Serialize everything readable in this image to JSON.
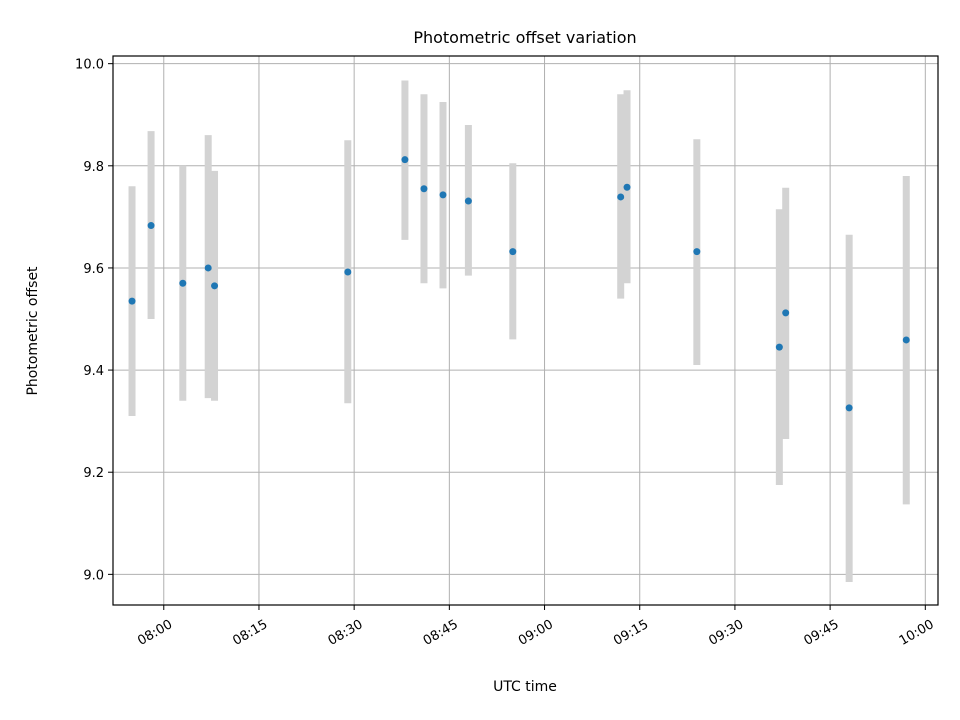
{
  "chart_data": {
    "type": "scatter",
    "title": "Photometric offset variation",
    "xlabel": "UTC time",
    "ylabel": "Photometric offset",
    "grid": true,
    "xlim": [
      "07:52",
      "10:02"
    ],
    "ylim": [
      8.94,
      10.015
    ],
    "x_ticks": [
      "08:00",
      "08:15",
      "08:30",
      "08:45",
      "09:00",
      "09:15",
      "09:30",
      "09:45",
      "10:00"
    ],
    "y_ticks": [
      "9.0",
      "9.2",
      "9.4",
      "9.6",
      "9.8",
      "10.0"
    ],
    "colors": {
      "point": "#1f77b4",
      "errorbar": "#d3d3d3",
      "grid": "#b0b0b0"
    },
    "points": [
      {
        "x": "07:55",
        "y": 9.535,
        "ylow": 9.31,
        "yhigh": 9.76
      },
      {
        "x": "07:58",
        "y": 9.683,
        "ylow": 9.5,
        "yhigh": 9.868
      },
      {
        "x": "08:03",
        "y": 9.57,
        "ylow": 9.34,
        "yhigh": 9.8
      },
      {
        "x": "08:07",
        "y": 9.6,
        "ylow": 9.345,
        "yhigh": 9.86
      },
      {
        "x": "08:08",
        "y": 9.565,
        "ylow": 9.34,
        "yhigh": 9.79
      },
      {
        "x": "08:29",
        "y": 9.592,
        "ylow": 9.335,
        "yhigh": 9.85
      },
      {
        "x": "08:38",
        "y": 9.812,
        "ylow": 9.655,
        "yhigh": 9.967
      },
      {
        "x": "08:41",
        "y": 9.755,
        "ylow": 9.57,
        "yhigh": 9.94
      },
      {
        "x": "08:44",
        "y": 9.743,
        "ylow": 9.56,
        "yhigh": 9.925
      },
      {
        "x": "08:48",
        "y": 9.731,
        "ylow": 9.585,
        "yhigh": 9.88
      },
      {
        "x": "08:55",
        "y": 9.632,
        "ylow": 9.46,
        "yhigh": 9.805
      },
      {
        "x": "09:12",
        "y": 9.739,
        "ylow": 9.54,
        "yhigh": 9.94
      },
      {
        "x": "09:13",
        "y": 9.758,
        "ylow": 9.57,
        "yhigh": 9.948
      },
      {
        "x": "09:24",
        "y": 9.632,
        "ylow": 9.41,
        "yhigh": 9.852
      },
      {
        "x": "09:37",
        "y": 9.445,
        "ylow": 9.175,
        "yhigh": 9.715
      },
      {
        "x": "09:38",
        "y": 9.512,
        "ylow": 9.265,
        "yhigh": 9.757
      },
      {
        "x": "09:48",
        "y": 9.326,
        "ylow": 8.985,
        "yhigh": 9.665
      },
      {
        "x": "09:57",
        "y": 9.459,
        "ylow": 9.137,
        "yhigh": 9.78
      }
    ]
  }
}
